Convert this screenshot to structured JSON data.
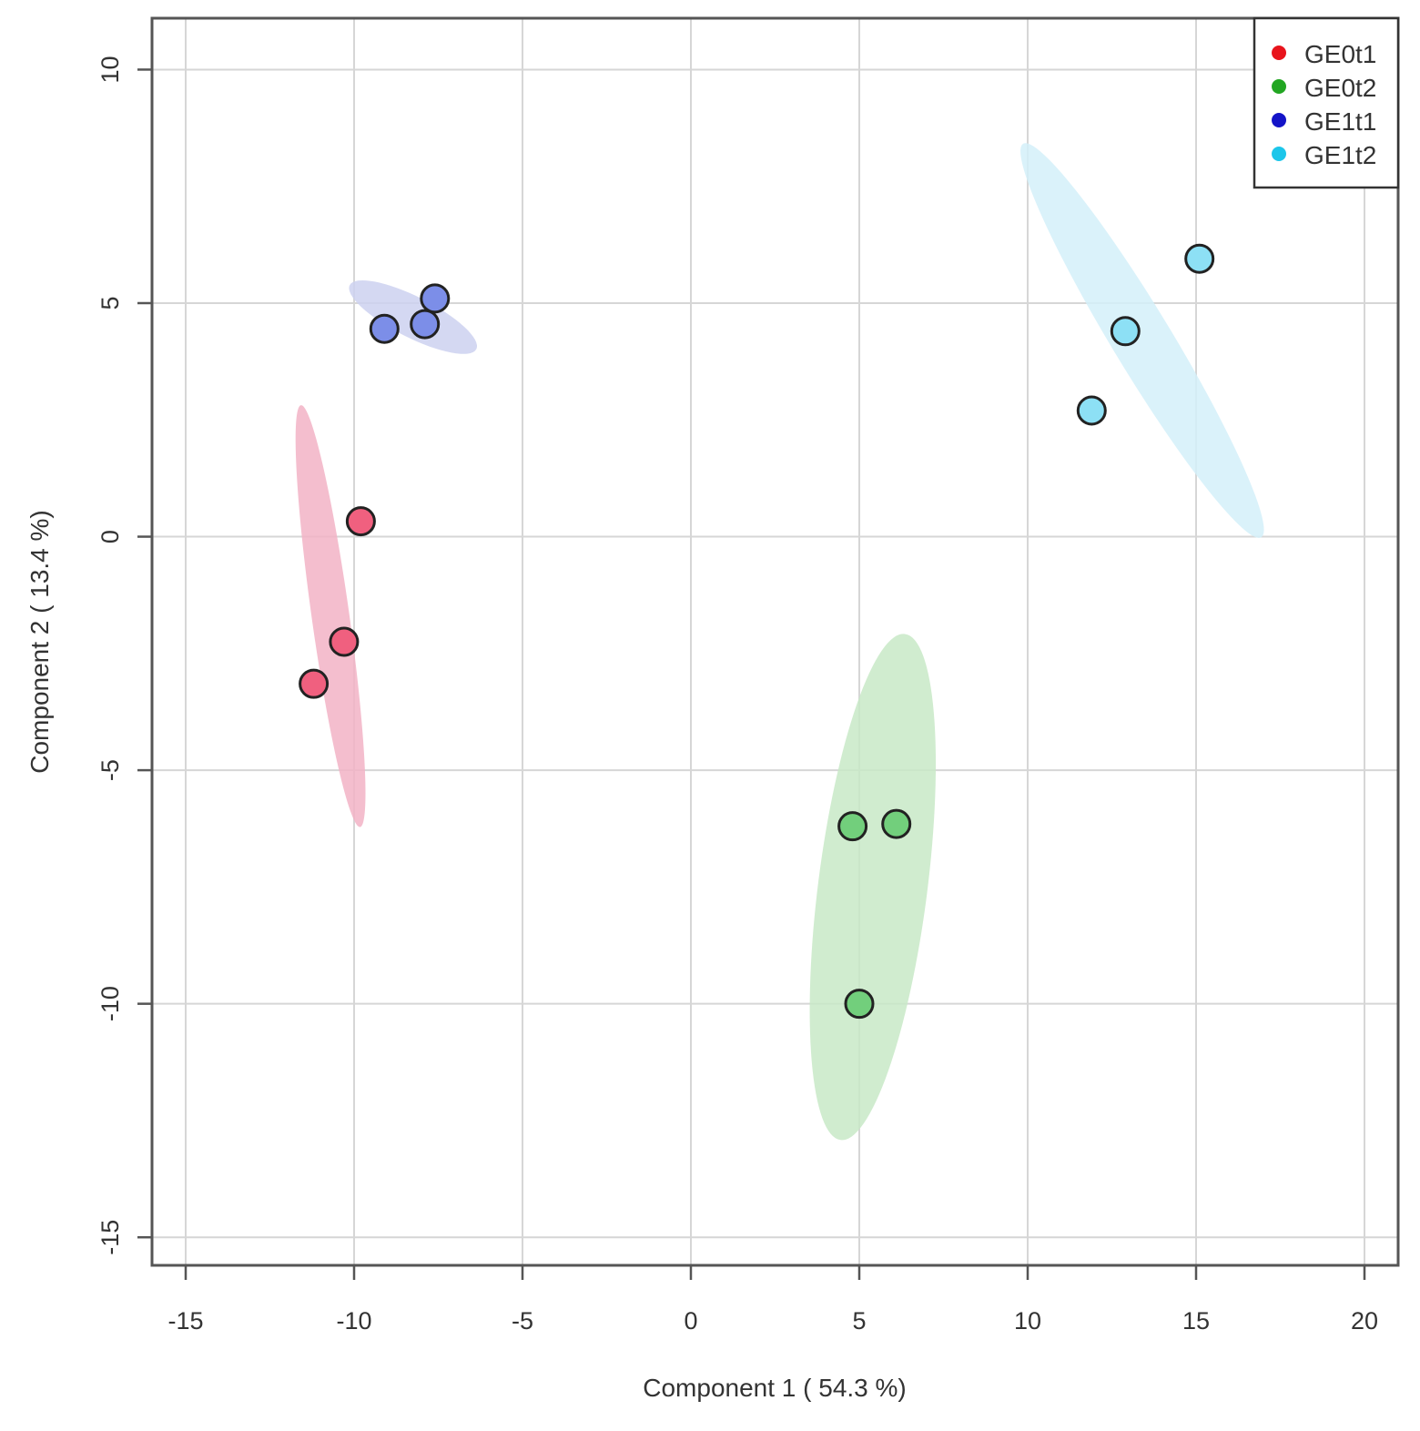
{
  "chart_data": {
    "type": "scatter",
    "title": "",
    "xlabel": "Component 1 ( 54.3 %)",
    "ylabel": "Component 2 ( 13.4 %)",
    "xlim": [
      -16,
      21
    ],
    "ylim": [
      -15.6,
      11.1
    ],
    "xticks": [
      -15,
      -10,
      -5,
      0,
      5,
      10,
      15,
      20
    ],
    "yticks": [
      -15,
      -10,
      -5,
      0,
      5,
      10
    ],
    "grid": true,
    "legend_position": "top-right",
    "series": [
      {
        "name": "GE0t1",
        "legend_color": "#e8141c",
        "point_color": "#f0607f",
        "ellipse_color": "#f2b3c6",
        "points": [
          [
            -9.8,
            0.33
          ],
          [
            -10.3,
            -2.25
          ],
          [
            -11.2,
            -3.15
          ]
        ],
        "ellipse": {
          "cx": -10.7,
          "cy": -1.7,
          "a": 4.6,
          "b": 0.55,
          "angle": -79
        }
      },
      {
        "name": "GE0t2",
        "legend_color": "#22a622",
        "point_color": "#72cf7c",
        "ellipse_color": "#c8e9c7",
        "points": [
          [
            4.8,
            -6.2
          ],
          [
            6.1,
            -6.15
          ],
          [
            5.0,
            -10.0
          ]
        ],
        "ellipse": {
          "cx": 5.4,
          "cy": -7.5,
          "a": 5.5,
          "b": 1.6,
          "angle": 80
        }
      },
      {
        "name": "GE1t1",
        "legend_color": "#1414c8",
        "point_color": "#7c8ee8",
        "ellipse_color": "#cdd1f0",
        "points": [
          [
            -9.1,
            4.45
          ],
          [
            -7.9,
            4.55
          ],
          [
            -7.6,
            5.1
          ]
        ],
        "ellipse": {
          "cx": -8.25,
          "cy": 4.7,
          "a": 2.0,
          "b": 0.45,
          "angle": -20
        }
      },
      {
        "name": "GE1t2",
        "legend_color": "#1cc6ea",
        "point_color": "#8de0f5",
        "ellipse_color": "#d3f0f9",
        "points": [
          [
            11.9,
            2.7
          ],
          [
            12.9,
            4.4
          ],
          [
            15.1,
            5.95
          ]
        ],
        "ellipse": {
          "cx": 13.4,
          "cy": 4.2,
          "a": 5.5,
          "b": 0.75,
          "angle": -50
        }
      }
    ]
  }
}
